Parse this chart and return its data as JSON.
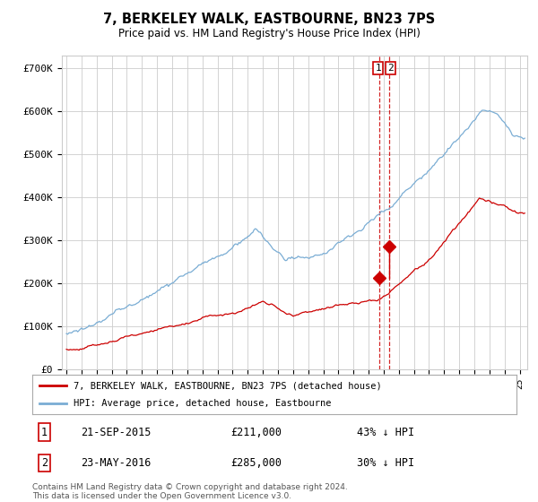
{
  "title": "7, BERKELEY WALK, EASTBOURNE, BN23 7PS",
  "subtitle": "Price paid vs. HM Land Registry's House Price Index (HPI)",
  "ylabel_ticks": [
    "£0",
    "£100K",
    "£200K",
    "£300K",
    "£400K",
    "£500K",
    "£600K",
    "£700K"
  ],
  "ytick_values": [
    0,
    100000,
    200000,
    300000,
    400000,
    500000,
    600000,
    700000
  ],
  "ylim": [
    0,
    730000
  ],
  "xlim_start": 1994.7,
  "xlim_end": 2025.5,
  "hpi_color": "#7aadd4",
  "price_color": "#cc0000",
  "sale1_date": 2015.72,
  "sale1_price": 211000,
  "sale2_date": 2016.38,
  "sale2_price": 285000,
  "legend1": "7, BERKELEY WALK, EASTBOURNE, BN23 7PS (detached house)",
  "legend2": "HPI: Average price, detached house, Eastbourne",
  "ann1_text": "21-SEP-2015",
  "ann1_price": "£211,000",
  "ann1_hpi": "43% ↓ HPI",
  "ann2_text": "23-MAY-2016",
  "ann2_price": "£285,000",
  "ann2_hpi": "30% ↓ HPI",
  "footer": "Contains HM Land Registry data © Crown copyright and database right 2024.\nThis data is licensed under the Open Government Licence v3.0.",
  "background_color": "#ffffff",
  "grid_color": "#cccccc"
}
